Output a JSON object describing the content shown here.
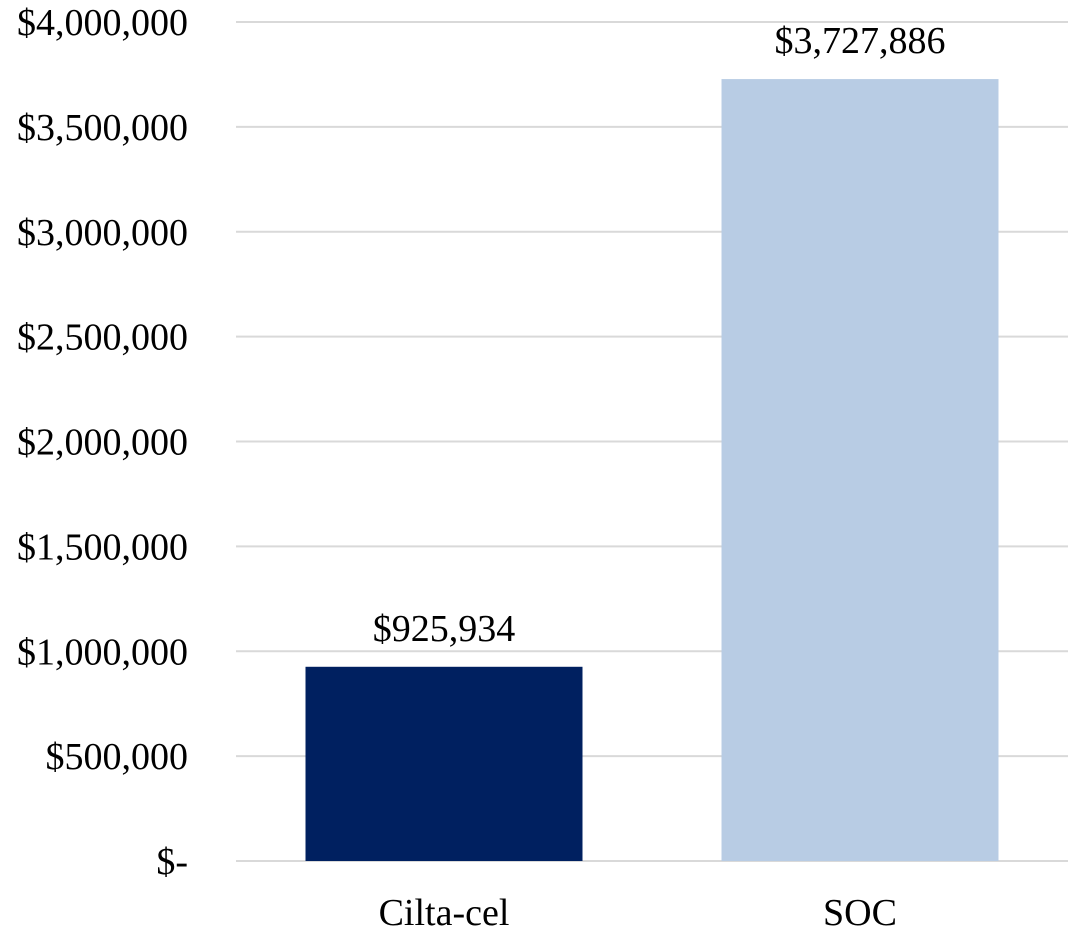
{
  "chart_data": {
    "type": "bar",
    "categories": [
      "Cilta-cel",
      "SOC"
    ],
    "values": [
      925934,
      3727886
    ],
    "data_labels": [
      "$925,934",
      "$3,727,886"
    ],
    "bar_colors": [
      "#002060",
      "#b8cce4"
    ],
    "ylim": [
      0,
      4000000
    ],
    "y_ticks": [
      0,
      500000,
      1000000,
      1500000,
      2000000,
      2500000,
      3000000,
      3500000,
      4000000
    ],
    "y_tick_labels": [
      "$-",
      "$500,000",
      "$1,000,000",
      "$1,500,000",
      "$2,000,000",
      "$2,500,000",
      "$3,000,000",
      "$3,500,000",
      "$4,000,000"
    ],
    "grid": true,
    "gridline_color": "#d9d9d9",
    "title": "",
    "xlabel": "",
    "ylabel": ""
  }
}
